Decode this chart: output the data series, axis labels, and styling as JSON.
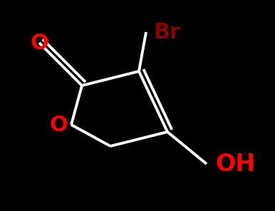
{
  "background_color": "#000000",
  "bond_color": "#ffffff",
  "bond_width": 2.8,
  "label_Br": "Br",
  "label_O_carbonyl": "O",
  "label_O_ring": "O",
  "label_OH": "OH",
  "Br_color": "#8B0000",
  "O_color": "#FF0000",
  "OH_color": "#FF0000",
  "font_size_Br": 22,
  "font_size_O": 22,
  "font_size_OH": 24
}
